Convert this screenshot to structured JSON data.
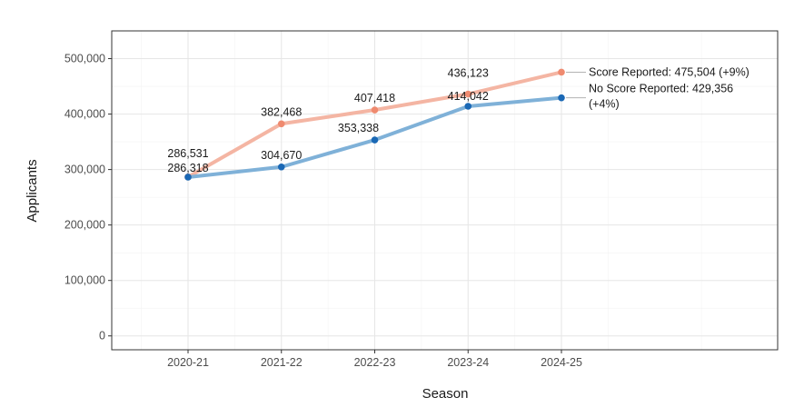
{
  "chart_data": {
    "type": "line",
    "xlabel": "Season",
    "ylabel": "Applicants",
    "categories": [
      "2020-21",
      "2021-22",
      "2022-23",
      "2023-24",
      "2024-25"
    ],
    "ylim": [
      -25000,
      550000
    ],
    "yticks": [
      0,
      100000,
      200000,
      300000,
      400000,
      500000
    ],
    "ytick_labels": [
      "0",
      "100,000",
      "200,000",
      "300,000",
      "400,000",
      "500,000"
    ],
    "grid": true,
    "series": [
      {
        "key": "score",
        "values": [
          286531,
          382468,
          407418,
          436123,
          475504
        ],
        "data_labels": [
          "286,531",
          "382,468",
          "407,418",
          "436,123"
        ],
        "end_label": [
          "Score Reported: 475,504 (+9%)"
        ],
        "line_color": "#f4b5a3",
        "point_color": "#ef8a6f"
      },
      {
        "key": "noscore",
        "values": [
          286318,
          304670,
          353338,
          414042,
          429356
        ],
        "data_labels": [
          "286,318",
          "304,670",
          "353,338",
          "414,042"
        ],
        "end_label": [
          "No Score Reported: 429,356",
          "(+4%)"
        ],
        "line_color": "#7fb1d8",
        "point_color": "#1a68b5"
      }
    ]
  }
}
